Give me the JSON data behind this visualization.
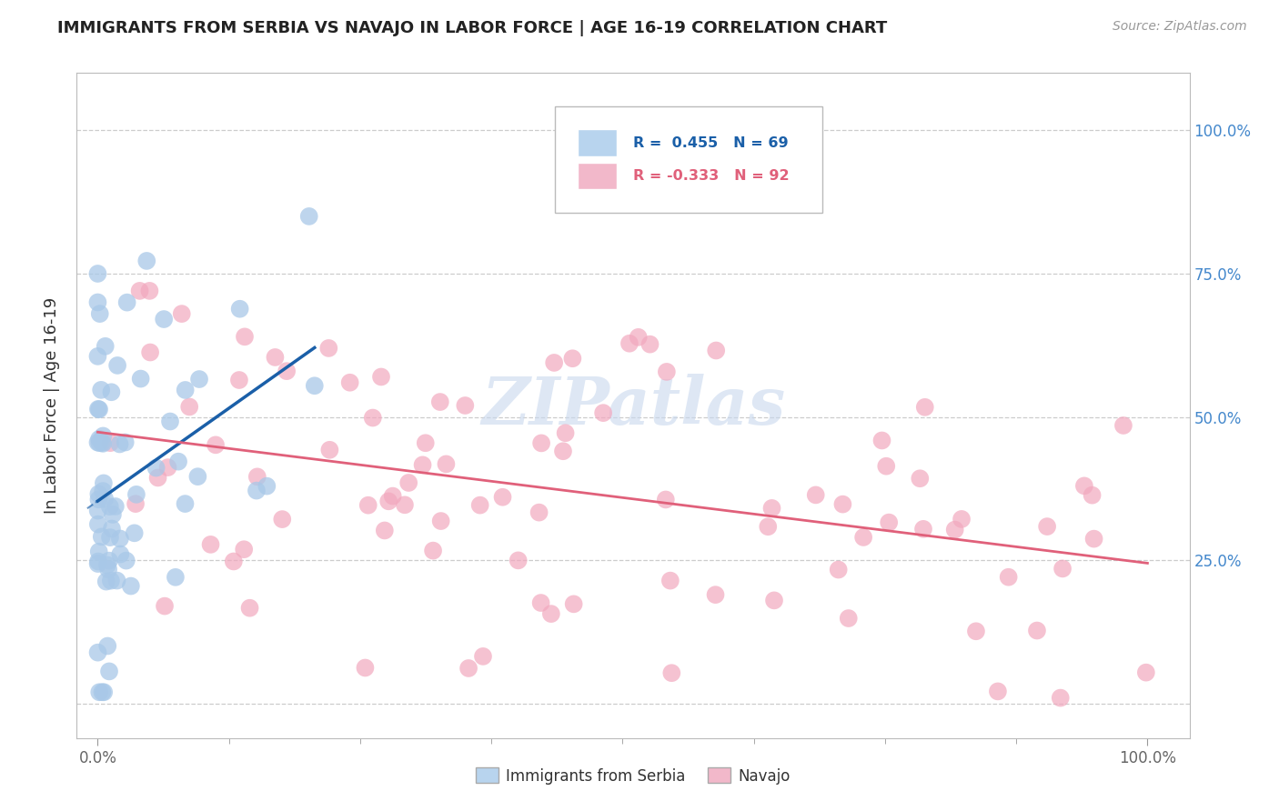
{
  "title": "IMMIGRANTS FROM SERBIA VS NAVAJO IN LABOR FORCE | AGE 16-19 CORRELATION CHART",
  "source_text": "Source: ZipAtlas.com",
  "ylabel": "In Labor Force | Age 16-19",
  "blue_R": 0.455,
  "blue_N": 69,
  "pink_R": -0.333,
  "pink_N": 92,
  "blue_color": "#a8c8e8",
  "pink_color": "#f2a8be",
  "blue_line_color": "#1a5fa8",
  "pink_line_color": "#e0607a",
  "legend_blue_fill": "#b8d4ee",
  "legend_pink_fill": "#f2b8ca",
  "watermark_color": "#c8d8ee",
  "ytick_values": [
    0.0,
    0.25,
    0.5,
    0.75,
    1.0
  ],
  "ytick_labels": [
    "",
    "25.0%",
    "50.0%",
    "75.0%",
    "100.0%"
  ],
  "xtick_labels": [
    "0.0%",
    "100.0%"
  ],
  "x_minor_ticks": [
    0.125,
    0.25,
    0.375,
    0.5,
    0.625,
    0.75,
    0.875
  ]
}
